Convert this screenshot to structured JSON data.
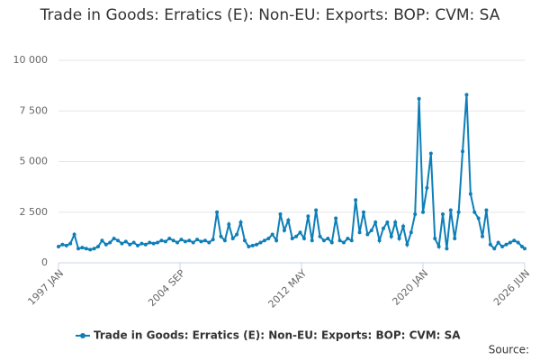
{
  "chart_data": {
    "type": "line",
    "title": "Trade in Goods: Erratics (E): Non-EU: Exports: BOP: CVM: SA",
    "source_label": "Source:",
    "x": [
      1997,
      1997.25,
      1997.5,
      1997.75,
      1998,
      1998.25,
      1998.5,
      1998.75,
      1999,
      1999.25,
      1999.5,
      1999.75,
      2000,
      2000.25,
      2000.5,
      2000.75,
      2001,
      2001.25,
      2001.5,
      2001.75,
      2002,
      2002.25,
      2002.5,
      2002.75,
      2003,
      2003.25,
      2003.5,
      2003.75,
      2004,
      2004.25,
      2004.5,
      2004.75,
      2005,
      2005.25,
      2005.5,
      2005.75,
      2006,
      2006.25,
      2006.5,
      2006.75,
      2007,
      2007.25,
      2007.5,
      2007.75,
      2008,
      2008.25,
      2008.5,
      2008.75,
      2009,
      2009.25,
      2009.5,
      2009.75,
      2010,
      2010.25,
      2010.5,
      2010.75,
      2011,
      2011.25,
      2011.5,
      2011.75,
      2012,
      2012.25,
      2012.5,
      2012.75,
      2013,
      2013.25,
      2013.5,
      2013.75,
      2014,
      2014.25,
      2014.5,
      2014.75,
      2015,
      2015.25,
      2015.5,
      2015.75,
      2016,
      2016.25,
      2016.5,
      2016.75,
      2017,
      2017.25,
      2017.5,
      2017.75,
      2018,
      2018.25,
      2018.5,
      2018.75,
      2019,
      2019.25,
      2019.5,
      2019.75,
      2020,
      2020.25,
      2020.5,
      2020.75,
      2021,
      2021.25,
      2021.5,
      2021.75,
      2022,
      2022.25,
      2022.5,
      2022.75,
      2023,
      2023.25,
      2023.5,
      2023.75,
      2024,
      2024.25,
      2024.5,
      2024.75,
      2025,
      2025.25,
      2025.5,
      2025.75,
      2026,
      2026.25,
      2026.417
    ],
    "series": [
      {
        "name": "Trade in Goods: Erratics (E): Non-EU: Exports: BOP: CVM: SA",
        "color": "#0d7fb8",
        "values": [
          800,
          900,
          850,
          950,
          1400,
          700,
          750,
          700,
          650,
          700,
          800,
          1100,
          900,
          1000,
          1200,
          1100,
          950,
          1050,
          900,
          1000,
          850,
          950,
          900,
          1000,
          950,
          1000,
          1100,
          1050,
          1200,
          1100,
          1000,
          1150,
          1050,
          1100,
          1000,
          1150,
          1050,
          1100,
          1000,
          1150,
          2500,
          1300,
          1100,
          1900,
          1200,
          1400,
          2000,
          1100,
          800,
          850,
          900,
          1000,
          1100,
          1200,
          1400,
          1100,
          2400,
          1600,
          2100,
          1200,
          1300,
          1500,
          1200,
          2300,
          1100,
          2600,
          1300,
          1100,
          1200,
          1000,
          2200,
          1100,
          1000,
          1200,
          1100,
          3100,
          1500,
          2500,
          1400,
          1600,
          2000,
          1100,
          1700,
          2000,
          1300,
          2000,
          1200,
          1800,
          900,
          1500,
          2400,
          8100,
          2500,
          3700,
          5400,
          1200,
          800,
          2400,
          700,
          2600,
          1200,
          2500,
          5500,
          8300,
          3400,
          2500,
          2200,
          1300,
          2600,
          900,
          700,
          1000,
          800,
          900,
          1000,
          1100,
          1000,
          800,
          700
        ]
      }
    ],
    "xlim": [
      1997,
      2026.417
    ],
    "xticks": [
      {
        "value": 1997,
        "label": "1997 JAN"
      },
      {
        "value": 2004.667,
        "label": "2004 SEP"
      },
      {
        "value": 2012.333,
        "label": "2012 MAY"
      },
      {
        "value": 2020,
        "label": "2020 JAN"
      },
      {
        "value": 2026.417,
        "label": "2026 JUN"
      }
    ],
    "ylim": [
      0,
      10000
    ],
    "yticks": [
      0,
      {
        "value": 2500,
        "label": "2 500"
      },
      {
        "value": 5000,
        "label": "5 000"
      },
      {
        "value": 7500,
        "label": "7 500"
      },
      {
        "value": 10000,
        "label": "10 000"
      }
    ],
    "grid": true
  }
}
